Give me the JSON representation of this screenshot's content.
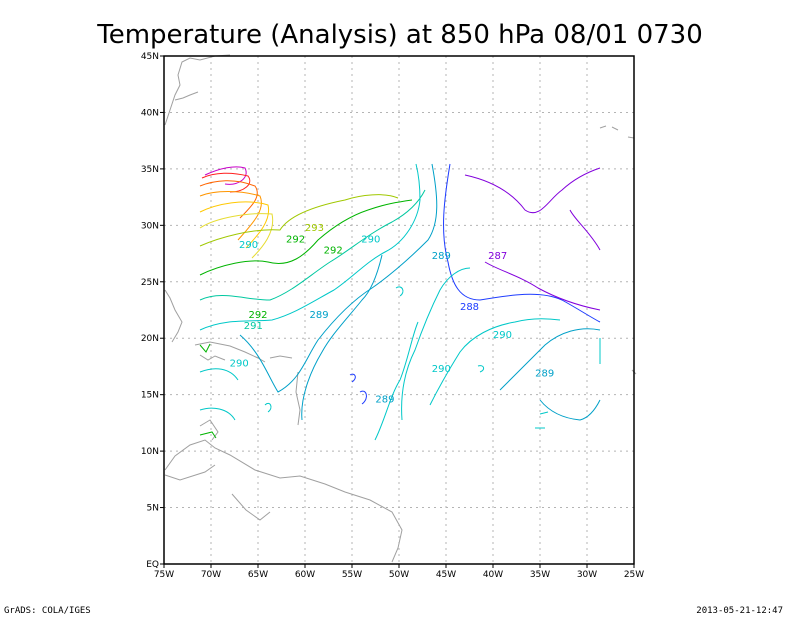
{
  "chart_data": {
    "type": "contour-map",
    "title": "Temperature (Analysis) at 850 hPa 08/01 0730",
    "footer_left": "GrADS: COLA/IGES",
    "footer_right": "2013-05-21-12:47",
    "x_ticks": [
      "75W",
      "70W",
      "65W",
      "60W",
      "55W",
      "50W",
      "45W",
      "40W",
      "35W",
      "30W",
      "25W"
    ],
    "y_ticks": [
      "EQ",
      "5N",
      "10N",
      "15N",
      "20N",
      "25N",
      "30N",
      "35N",
      "40N",
      "45N"
    ],
    "xlim": [
      -75,
      -25
    ],
    "ylim": [
      0,
      45
    ],
    "grid": true,
    "contour_labels": [
      {
        "text": "293",
        "lon": -59,
        "lat": 29.5,
        "color": "#a0c800"
      },
      {
        "text": "292",
        "lon": -61,
        "lat": 28.5,
        "color": "#00b400"
      },
      {
        "text": "292",
        "lon": -57,
        "lat": 27.5,
        "color": "#00b400"
      },
      {
        "text": "290",
        "lon": -66,
        "lat": 28,
        "color": "#00c8c8"
      },
      {
        "text": "290",
        "lon": -53,
        "lat": 28.5,
        "color": "#00c8c8"
      },
      {
        "text": "289",
        "lon": -45.5,
        "lat": 27,
        "color": "#00a0c8"
      },
      {
        "text": "287",
        "lon": -39.5,
        "lat": 27,
        "color": "#8200dc"
      },
      {
        "text": "288",
        "lon": -42.5,
        "lat": 22.5,
        "color": "#1e3cff"
      },
      {
        "text": "292",
        "lon": -65,
        "lat": 21.8,
        "color": "#00b400"
      },
      {
        "text": "291",
        "lon": -65.5,
        "lat": 20.8,
        "color": "#00c8a0"
      },
      {
        "text": "289",
        "lon": -58.5,
        "lat": 21.8,
        "color": "#00a0c8"
      },
      {
        "text": "290",
        "lon": -39,
        "lat": 20,
        "color": "#00c8c8"
      },
      {
        "text": "290",
        "lon": -67,
        "lat": 17.5,
        "color": "#00c8c8"
      },
      {
        "text": "290",
        "lon": -45.5,
        "lat": 17,
        "color": "#00c8c8"
      },
      {
        "text": "289",
        "lon": -34.5,
        "lat": 16.6,
        "color": "#00a0c8"
      },
      {
        "text": "289",
        "lon": -51.5,
        "lat": 14.3,
        "color": "#00a0c8"
      }
    ]
  }
}
